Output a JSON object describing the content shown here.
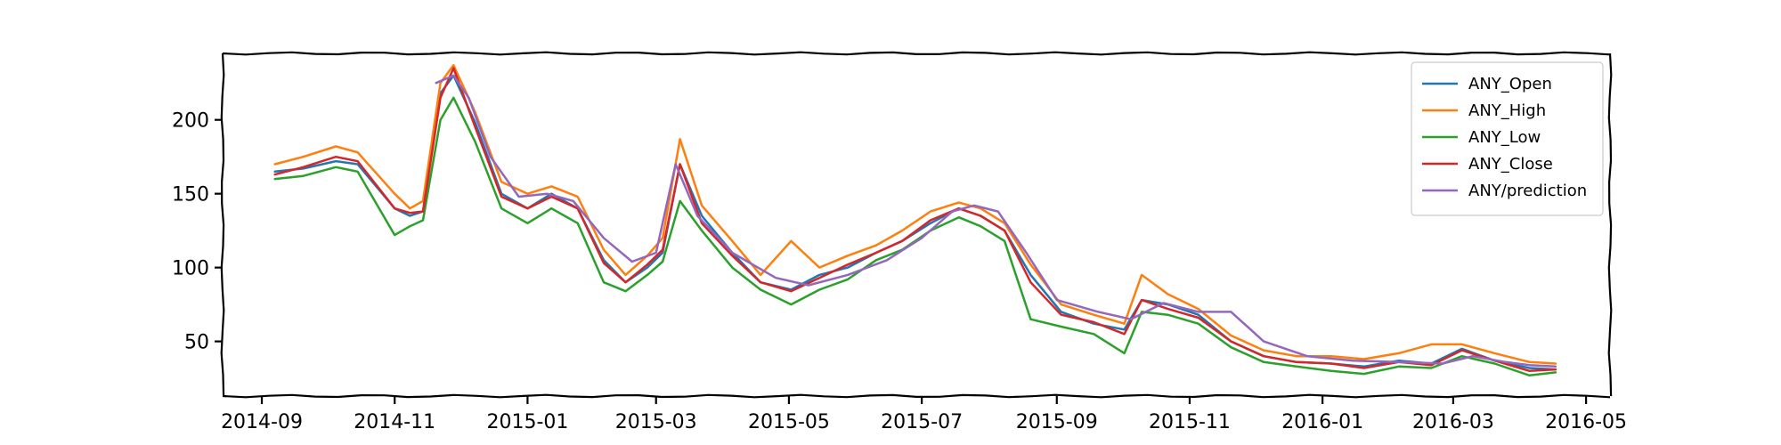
{
  "chart_data": {
    "type": "line",
    "title": "",
    "xlabel": "",
    "ylabel": "",
    "xlim": [
      "2014-08-14",
      "2016-05-12"
    ],
    "ylim": [
      13,
      245
    ],
    "grid": false,
    "legend_position": "top-right",
    "x_tick_labels": [
      "2014-09",
      "2014-11",
      "2015-01",
      "2015-03",
      "2015-05",
      "2015-07",
      "2015-09",
      "2015-11",
      "2016-01",
      "2016-03",
      "2016-05"
    ],
    "x_tick_dates": [
      "2014-09-01",
      "2014-11-01",
      "2015-01-01",
      "2015-03-01",
      "2015-05-01",
      "2015-07-01",
      "2015-09-01",
      "2015-11-01",
      "2016-01-01",
      "2016-03-01",
      "2016-05-01"
    ],
    "y_ticks": [
      50,
      100,
      150,
      200
    ],
    "y_tick_labels": [
      "50",
      "100",
      "150",
      "200"
    ],
    "series": [
      {
        "name": "ANY_Open",
        "color": "#1f77b4",
        "x": [
          "2014-09-07",
          "2014-09-20",
          "2014-10-05",
          "2014-10-15",
          "2014-11-01",
          "2014-11-08",
          "2014-11-14",
          "2014-11-22",
          "2014-11-28",
          "2014-12-08",
          "2014-12-20",
          "2015-01-01",
          "2015-01-12",
          "2015-01-24",
          "2015-02-05",
          "2015-02-15",
          "2015-02-25",
          "2015-03-04",
          "2015-03-12",
          "2015-03-22",
          "2015-04-05",
          "2015-04-18",
          "2015-05-02",
          "2015-05-15",
          "2015-05-28",
          "2015-06-10",
          "2015-06-22",
          "2015-07-05",
          "2015-07-18",
          "2015-07-28",
          "2015-08-08",
          "2015-08-20",
          "2015-09-03",
          "2015-09-18",
          "2015-10-02",
          "2015-10-10",
          "2015-10-22",
          "2015-11-05",
          "2015-11-20",
          "2015-12-05",
          "2015-12-20",
          "2016-01-05",
          "2016-01-20",
          "2016-02-05",
          "2016-02-20",
          "2016-03-05",
          "2016-03-20",
          "2016-04-05",
          "2016-04-17"
        ],
        "y": [
          165,
          167,
          172,
          170,
          140,
          135,
          138,
          218,
          230,
          198,
          150,
          140,
          150,
          140,
          105,
          90,
          100,
          110,
          170,
          135,
          110,
          90,
          85,
          95,
          100,
          110,
          118,
          130,
          140,
          135,
          125,
          95,
          70,
          62,
          58,
          78,
          75,
          68,
          50,
          40,
          36,
          35,
          33,
          37,
          35,
          45,
          37,
          32,
          31
        ]
      },
      {
        "name": "ANY_High",
        "color": "#ff7f0e",
        "x": [
          "2014-09-07",
          "2014-09-20",
          "2014-10-05",
          "2014-10-15",
          "2014-11-01",
          "2014-11-08",
          "2014-11-14",
          "2014-11-22",
          "2014-11-28",
          "2014-12-08",
          "2014-12-20",
          "2015-01-01",
          "2015-01-12",
          "2015-01-24",
          "2015-02-05",
          "2015-02-15",
          "2015-02-25",
          "2015-03-04",
          "2015-03-12",
          "2015-03-22",
          "2015-04-05",
          "2015-04-18",
          "2015-05-02",
          "2015-05-15",
          "2015-05-28",
          "2015-06-10",
          "2015-06-22",
          "2015-07-05",
          "2015-07-18",
          "2015-07-28",
          "2015-08-08",
          "2015-08-20",
          "2015-09-03",
          "2015-09-18",
          "2015-10-02",
          "2015-10-10",
          "2015-10-22",
          "2015-11-05",
          "2015-11-20",
          "2015-12-05",
          "2015-12-20",
          "2016-01-05",
          "2016-01-20",
          "2016-02-05",
          "2016-02-20",
          "2016-03-05",
          "2016-03-20",
          "2016-04-05",
          "2016-04-17"
        ],
        "y": [
          170,
          175,
          182,
          178,
          150,
          140,
          145,
          225,
          237,
          205,
          158,
          150,
          155,
          148,
          112,
          95,
          108,
          120,
          187,
          142,
          118,
          95,
          118,
          100,
          108,
          115,
          125,
          138,
          144,
          140,
          130,
          102,
          75,
          68,
          62,
          95,
          82,
          72,
          54,
          44,
          40,
          40,
          38,
          42,
          48,
          48,
          42,
          36,
          35
        ]
      },
      {
        "name": "ANY_Low",
        "color": "#2ca02c",
        "x": [
          "2014-09-07",
          "2014-09-20",
          "2014-10-05",
          "2014-10-15",
          "2014-11-01",
          "2014-11-08",
          "2014-11-14",
          "2014-11-22",
          "2014-11-28",
          "2014-12-08",
          "2014-12-20",
          "2015-01-01",
          "2015-01-12",
          "2015-01-24",
          "2015-02-05",
          "2015-02-15",
          "2015-02-25",
          "2015-03-04",
          "2015-03-12",
          "2015-03-22",
          "2015-04-05",
          "2015-04-18",
          "2015-05-02",
          "2015-05-15",
          "2015-05-28",
          "2015-06-10",
          "2015-06-22",
          "2015-07-05",
          "2015-07-18",
          "2015-07-28",
          "2015-08-08",
          "2015-08-20",
          "2015-09-03",
          "2015-09-18",
          "2015-10-02",
          "2015-10-10",
          "2015-10-22",
          "2015-11-05",
          "2015-11-20",
          "2015-12-05",
          "2015-12-20",
          "2016-01-05",
          "2016-01-20",
          "2016-02-05",
          "2016-02-20",
          "2016-03-05",
          "2016-03-20",
          "2016-04-05",
          "2016-04-17"
        ],
        "y": [
          160,
          162,
          168,
          165,
          122,
          128,
          132,
          200,
          215,
          185,
          140,
          130,
          140,
          130,
          90,
          84,
          95,
          104,
          145,
          125,
          100,
          85,
          75,
          85,
          92,
          105,
          112,
          125,
          134,
          128,
          118,
          65,
          60,
          55,
          42,
          70,
          68,
          62,
          46,
          36,
          33,
          30,
          28,
          33,
          32,
          40,
          35,
          27,
          29
        ]
      },
      {
        "name": "ANY_Close",
        "color": "#d62728",
        "x": [
          "2014-09-07",
          "2014-09-20",
          "2014-10-05",
          "2014-10-15",
          "2014-11-01",
          "2014-11-08",
          "2014-11-14",
          "2014-11-22",
          "2014-11-28",
          "2014-12-08",
          "2014-12-20",
          "2015-01-01",
          "2015-01-12",
          "2015-01-24",
          "2015-02-05",
          "2015-02-15",
          "2015-02-25",
          "2015-03-04",
          "2015-03-12",
          "2015-03-22",
          "2015-04-05",
          "2015-04-18",
          "2015-05-02",
          "2015-05-15",
          "2015-05-28",
          "2015-06-10",
          "2015-06-22",
          "2015-07-05",
          "2015-07-18",
          "2015-07-28",
          "2015-08-08",
          "2015-08-20",
          "2015-09-03",
          "2015-09-18",
          "2015-10-02",
          "2015-10-10",
          "2015-10-22",
          "2015-11-05",
          "2015-11-20",
          "2015-12-05",
          "2015-12-20",
          "2016-01-05",
          "2016-01-20",
          "2016-02-05",
          "2016-02-20",
          "2016-03-05",
          "2016-03-20",
          "2016-04-05",
          "2016-04-17"
        ],
        "y": [
          163,
          168,
          175,
          172,
          140,
          137,
          138,
          215,
          235,
          195,
          148,
          140,
          148,
          140,
          103,
          90,
          102,
          112,
          170,
          130,
          108,
          90,
          84,
          93,
          102,
          110,
          118,
          132,
          140,
          135,
          125,
          90,
          68,
          63,
          55,
          78,
          72,
          66,
          50,
          40,
          36,
          35,
          32,
          36,
          34,
          44,
          37,
          30,
          31
        ]
      },
      {
        "name": "ANY/prediction",
        "color": "#9467bd",
        "x": [
          "2014-11-20",
          "2014-11-28",
          "2014-12-05",
          "2014-12-15",
          "2014-12-28",
          "2015-01-10",
          "2015-01-22",
          "2015-02-05",
          "2015-02-18",
          "2015-03-01",
          "2015-03-10",
          "2015-03-20",
          "2015-04-05",
          "2015-04-25",
          "2015-05-10",
          "2015-05-28",
          "2015-06-15",
          "2015-07-01",
          "2015-07-15",
          "2015-07-25",
          "2015-08-05",
          "2015-08-18",
          "2015-09-01",
          "2015-09-20",
          "2015-10-05",
          "2015-10-20",
          "2015-11-05",
          "2015-11-20",
          "2015-12-05",
          "2015-12-25",
          "2016-01-15",
          "2016-02-05",
          "2016-02-25",
          "2016-03-10",
          "2016-03-25",
          "2016-04-05",
          "2016-04-17"
        ],
        "y": [
          225,
          230,
          215,
          175,
          148,
          150,
          145,
          120,
          104,
          110,
          170,
          135,
          110,
          93,
          88,
          95,
          105,
          120,
          138,
          142,
          138,
          110,
          78,
          70,
          65,
          76,
          70,
          70,
          50,
          40,
          37,
          36,
          35,
          40,
          36,
          34,
          33
        ]
      }
    ]
  }
}
